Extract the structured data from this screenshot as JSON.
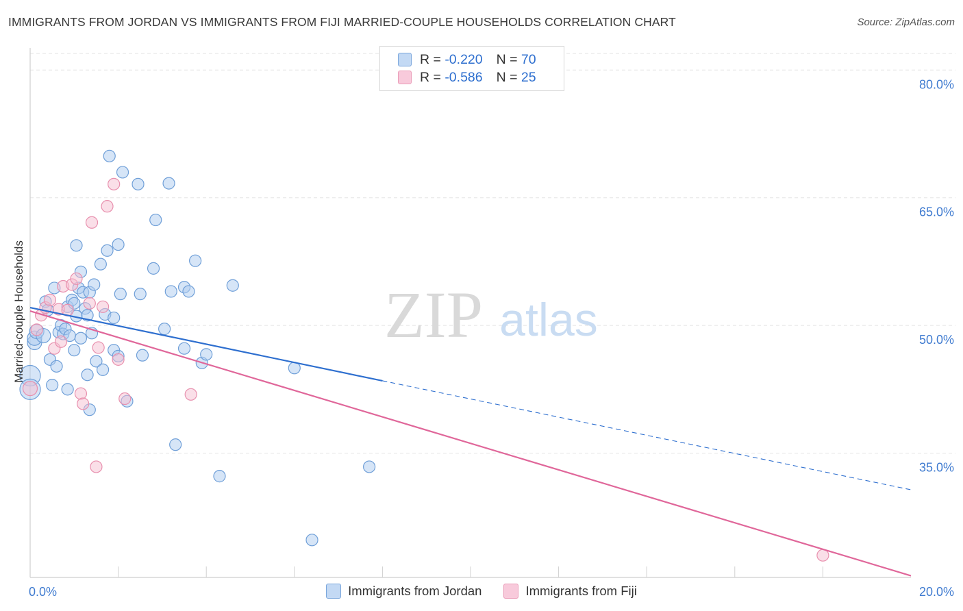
{
  "title": "IMMIGRANTS FROM JORDAN VS IMMIGRANTS FROM FIJI MARRIED-COUPLE HOUSEHOLDS CORRELATION CHART",
  "source": "Source: ZipAtlas.com",
  "watermark": {
    "zip": "ZIP",
    "atlas": "atlas"
  },
  "legend": {
    "rows": [
      {
        "r_label": "R = ",
        "r_value": "-0.220",
        "n_label": "N = ",
        "n_value": "70"
      },
      {
        "r_label": "R = ",
        "r_value": "-0.586",
        "n_label": "N = ",
        "n_value": "25"
      }
    ]
  },
  "colors": {
    "jordan_fill": "#aecbf0",
    "jordan_stroke": "#6f9fd8",
    "jordan_line": "#2e6fcf",
    "fiji_fill": "#f6bfd1",
    "fiji_stroke": "#e890ae",
    "fiji_line": "#e0679a",
    "tick_label": "#3f7bd0",
    "grid": "#e3e3e3"
  },
  "chart_data": {
    "type": "scatter",
    "title": "IMMIGRANTS FROM JORDAN VS IMMIGRANTS FROM FIJI MARRIED-COUPLE HOUSEHOLDS CORRELATION CHART",
    "xlabel": "",
    "ylabel": "Married-couple Households",
    "xlim": [
      0,
      20
    ],
    "ylim": [
      20.4,
      82.6
    ],
    "x_tick_labels": [
      {
        "value": 0,
        "label": "0.0%"
      },
      {
        "value": 20,
        "label": "20.0%"
      }
    ],
    "y_tick_labels": [
      {
        "value": 80,
        "label": "80.0%"
      },
      {
        "value": 65,
        "label": "65.0%"
      },
      {
        "value": 50,
        "label": "50.0%"
      },
      {
        "value": 35,
        "label": "35.0%"
      }
    ],
    "y_grid": [
      80,
      65,
      50,
      35
    ],
    "x_minor_ticks": [
      2,
      4,
      6,
      8,
      10,
      12,
      14,
      16,
      18
    ],
    "series": [
      {
        "name": "Immigrants from Jordan",
        "color_key": "jordan",
        "R": -0.22,
        "N": 70,
        "points": [
          [
            0.0,
            44.1,
            3
          ],
          [
            0.0,
            42.5,
            3
          ],
          [
            0.1,
            48.0,
            2
          ],
          [
            0.1,
            48.5,
            2
          ],
          [
            0.15,
            49.3,
            2
          ],
          [
            0.3,
            48.8,
            2
          ],
          [
            0.35,
            52.8,
            1
          ],
          [
            0.4,
            51.8,
            1
          ],
          [
            0.45,
            46.0,
            1
          ],
          [
            0.5,
            43.0,
            1
          ],
          [
            0.55,
            54.4,
            1
          ],
          [
            0.6,
            45.2,
            1
          ],
          [
            0.65,
            49.2,
            1
          ],
          [
            0.7,
            50.0,
            1
          ],
          [
            0.75,
            49.0,
            1
          ],
          [
            0.8,
            49.6,
            1
          ],
          [
            0.85,
            42.5,
            1
          ],
          [
            0.85,
            52.2,
            1
          ],
          [
            0.9,
            48.8,
            1
          ],
          [
            0.95,
            53.0,
            1
          ],
          [
            1.0,
            52.6,
            1
          ],
          [
            1.0,
            47.1,
            1
          ],
          [
            1.05,
            59.4,
            1
          ],
          [
            1.05,
            51.1,
            1
          ],
          [
            1.1,
            54.4,
            1
          ],
          [
            1.15,
            48.5,
            1
          ],
          [
            1.15,
            56.3,
            1
          ],
          [
            1.2,
            53.9,
            1
          ],
          [
            1.25,
            52.0,
            1
          ],
          [
            1.3,
            51.2,
            1
          ],
          [
            1.3,
            44.2,
            1
          ],
          [
            1.35,
            40.1,
            1
          ],
          [
            1.35,
            53.9,
            1
          ],
          [
            1.4,
            49.1,
            1
          ],
          [
            1.45,
            54.8,
            1
          ],
          [
            1.5,
            45.8,
            1
          ],
          [
            1.6,
            57.2,
            1
          ],
          [
            1.65,
            44.8,
            1
          ],
          [
            1.7,
            51.3,
            1
          ],
          [
            1.75,
            58.8,
            1
          ],
          [
            1.8,
            69.9,
            1
          ],
          [
            1.9,
            50.9,
            1
          ],
          [
            1.9,
            47.1,
            1
          ],
          [
            2.0,
            59.5,
            1
          ],
          [
            2.0,
            46.4,
            1
          ],
          [
            2.05,
            53.7,
            1
          ],
          [
            2.1,
            68.0,
            1
          ],
          [
            2.2,
            41.1,
            1
          ],
          [
            2.45,
            66.6,
            1
          ],
          [
            2.5,
            53.7,
            1
          ],
          [
            2.55,
            46.5,
            1
          ],
          [
            2.8,
            56.7,
            1
          ],
          [
            2.85,
            62.4,
            1
          ],
          [
            3.05,
            49.6,
            1
          ],
          [
            3.15,
            66.7,
            1
          ],
          [
            3.2,
            54.0,
            1
          ],
          [
            3.3,
            36.0,
            1
          ],
          [
            3.5,
            54.5,
            1
          ],
          [
            3.5,
            47.3,
            1
          ],
          [
            3.6,
            54.0,
            1
          ],
          [
            3.75,
            57.6,
            1
          ],
          [
            3.9,
            45.6,
            1
          ],
          [
            4.0,
            46.6,
            1
          ],
          [
            4.3,
            32.3,
            1
          ],
          [
            4.6,
            54.7,
            1
          ],
          [
            6.0,
            45.0,
            1
          ],
          [
            6.4,
            24.8,
            1
          ],
          [
            7.7,
            33.4,
            1
          ]
        ]
      },
      {
        "name": "Immigrants from Fiji",
        "color_key": "fiji",
        "R": -0.586,
        "N": 25,
        "points": [
          [
            0.0,
            42.6,
            2
          ],
          [
            0.15,
            49.5,
            1
          ],
          [
            0.25,
            51.2,
            1
          ],
          [
            0.35,
            52.1,
            1
          ],
          [
            0.45,
            53.0,
            1
          ],
          [
            0.55,
            47.3,
            1
          ],
          [
            0.65,
            51.9,
            1
          ],
          [
            0.7,
            48.1,
            1
          ],
          [
            0.75,
            54.6,
            1
          ],
          [
            0.85,
            51.8,
            1
          ],
          [
            0.95,
            54.8,
            1
          ],
          [
            1.05,
            55.5,
            1
          ],
          [
            1.15,
            42.0,
            1
          ],
          [
            1.2,
            40.8,
            1
          ],
          [
            1.35,
            52.6,
            1
          ],
          [
            1.4,
            62.1,
            1
          ],
          [
            1.5,
            33.4,
            1
          ],
          [
            1.55,
            47.4,
            1
          ],
          [
            1.65,
            52.2,
            1
          ],
          [
            1.75,
            64.0,
            1
          ],
          [
            1.9,
            66.6,
            1
          ],
          [
            2.0,
            46.0,
            1
          ],
          [
            2.15,
            41.4,
            1
          ],
          [
            3.65,
            41.9,
            1
          ],
          [
            18.0,
            23.0,
            1
          ]
        ]
      }
    ],
    "trend_lines": [
      {
        "series": "Immigrants from Jordan",
        "x0": 0.0,
        "y0": 52.1,
        "x1": 8.0,
        "y1": 43.5,
        "dashed_to_x": 20.0,
        "dashed_to_y": 30.7
      },
      {
        "series": "Immigrants from Fiji",
        "x0": 0.0,
        "y0": 51.7,
        "x1": 20.0,
        "y1": 20.6
      }
    ]
  }
}
